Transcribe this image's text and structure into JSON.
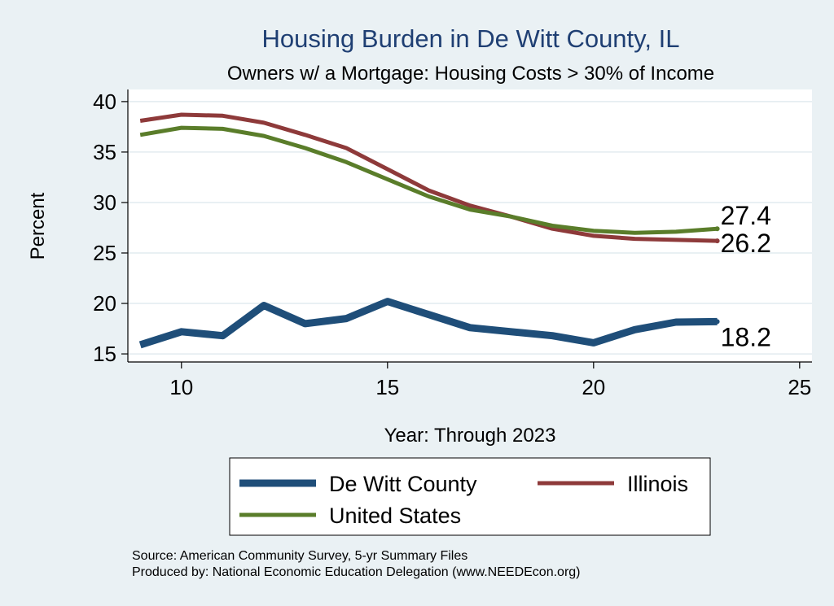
{
  "chart_data": {
    "type": "line",
    "title": "Housing Burden in De Witt County, IL",
    "subtitle": "Owners w/ a Mortgage: Housing Costs > 30% of Income",
    "xlabel": "Year: Through 2023",
    "ylabel": "Percent",
    "xlim": [
      8.7,
      25.3
    ],
    "ylim": [
      14.2,
      41.2
    ],
    "xticks": [
      10,
      15,
      20,
      25
    ],
    "yticks": [
      15,
      20,
      25,
      30,
      35,
      40
    ],
    "grid": true,
    "x": [
      9,
      10,
      11,
      12,
      13,
      14,
      15,
      16,
      17,
      18,
      19,
      20,
      21,
      22,
      23
    ],
    "series": [
      {
        "name": "De Witt County",
        "color": "#1f4e79",
        "values": [
          15.9,
          17.2,
          16.8,
          19.8,
          18.0,
          18.5,
          20.2,
          18.9,
          17.6,
          17.2,
          16.8,
          16.1,
          17.4,
          18.15,
          18.2
        ],
        "end_label": "18.2"
      },
      {
        "name": "Illinois",
        "color": "#8e3a3a",
        "values": [
          38.1,
          38.7,
          38.6,
          37.9,
          36.7,
          35.4,
          33.3,
          31.2,
          29.7,
          28.6,
          27.4,
          26.7,
          26.4,
          26.3,
          26.2
        ],
        "end_label": "26.2"
      },
      {
        "name": "United States",
        "color": "#5a7d2a",
        "values": [
          36.7,
          37.4,
          37.3,
          36.6,
          35.4,
          34.0,
          32.3,
          30.6,
          29.3,
          28.6,
          27.7,
          27.2,
          27.0,
          27.1,
          27.4
        ],
        "end_label": "27.4"
      }
    ],
    "legend": {
      "placement": "bottom"
    },
    "source_lines": [
      "Source: American Community Survey, 5-yr Summary Files",
      "Produced by: National Economic Education Delegation (www.NEEDEcon.org)"
    ]
  }
}
